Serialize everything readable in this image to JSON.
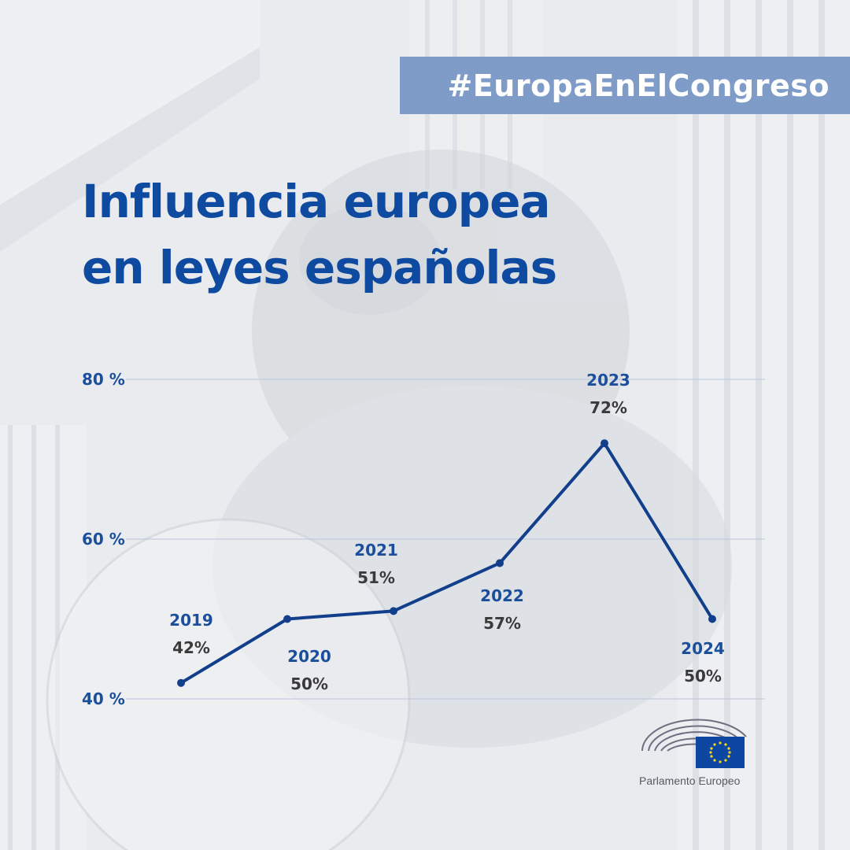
{
  "hashtag": "#EuropaEnElCongreso",
  "title": {
    "line1": "Influencia europea",
    "line2": "en leyes españolas"
  },
  "colors": {
    "title": "#0f4aa1",
    "line": "#123f8c",
    "banner": "#7f9bc8",
    "year_label": "#1b4f9c",
    "value_label": "#3a3a3a",
    "gridline": "#b6c6de"
  },
  "chart_data": {
    "type": "line",
    "categories": [
      "2019",
      "2020",
      "2021",
      "2022",
      "2023",
      "2024"
    ],
    "values": [
      42,
      50,
      51,
      57,
      72,
      50
    ],
    "value_labels": [
      "42%",
      "50%",
      "51%",
      "57%",
      "72%",
      "50%"
    ],
    "y_ticks": [
      {
        "value": 40,
        "label": "40 %"
      },
      {
        "value": 60,
        "label": "60 %"
      },
      {
        "value": 80,
        "label": "80 %"
      }
    ],
    "ylim": [
      40,
      80
    ],
    "grid": true,
    "title": "Influencia europea en leyes españolas",
    "xlabel": "",
    "ylabel": ""
  },
  "logo": {
    "icon": "european-parliament-hemicycle-logo",
    "flag_icon": "eu-flag-icon",
    "name": "Parlamento Europeo"
  }
}
